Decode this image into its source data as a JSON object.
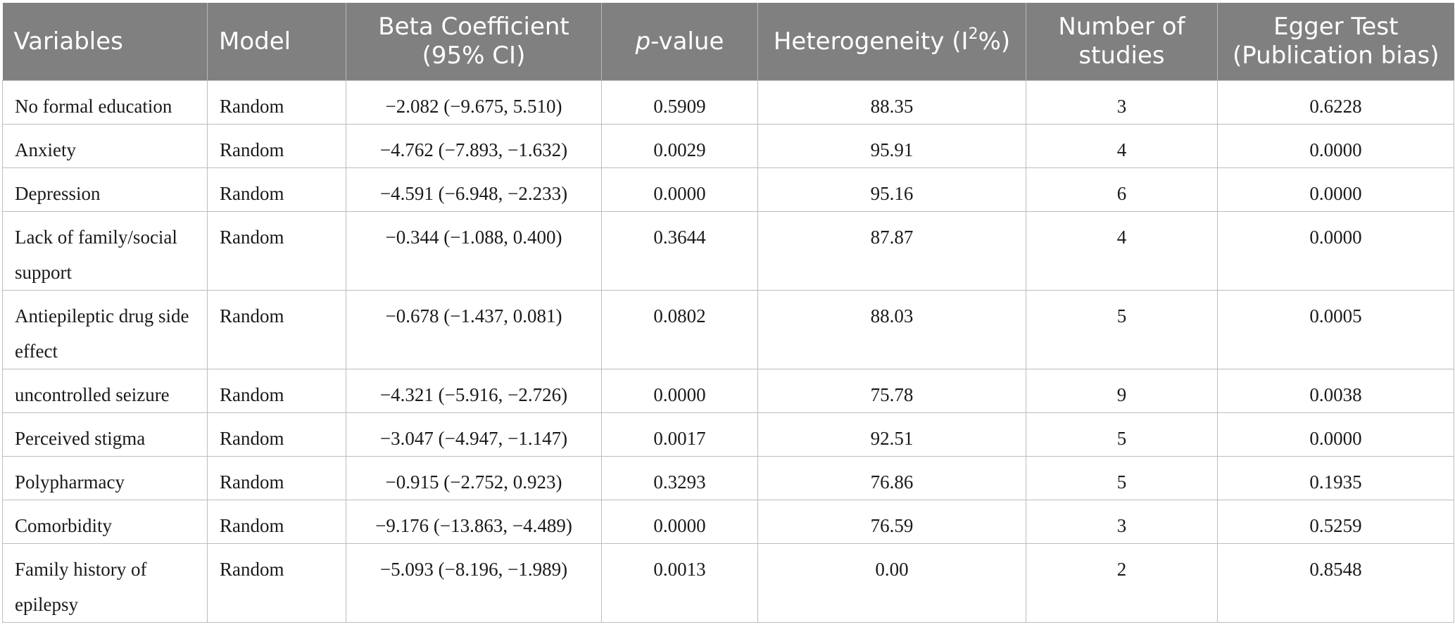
{
  "table": {
    "headers": {
      "variables": "Variables",
      "model": "Model",
      "beta_line1": "Beta Coefficient",
      "beta_line2": "(95% CI)",
      "pvalue_prefix": "p",
      "pvalue_suffix": "-value",
      "hetero_prefix": "Heterogeneity (I",
      "hetero_sup": "2",
      "hetero_suffix": "%)",
      "studies_line1": "Number of",
      "studies_line2": "studies",
      "egger_line1": "Egger Test",
      "egger_line2": "(Publication bias)"
    },
    "rows": [
      {
        "variable": "No formal education",
        "model": "Random",
        "beta": "−2.082 (−9.675, 5.510)",
        "p": "0.5909",
        "het": "88.35",
        "n": "3",
        "egger": "0.6228"
      },
      {
        "variable": "Anxiety",
        "model": "Random",
        "beta": "−4.762 (−7.893, −1.632)",
        "p": "0.0029",
        "het": "95.91",
        "n": "4",
        "egger": "0.0000"
      },
      {
        "variable": "Depression",
        "model": "Random",
        "beta": "−4.591 (−6.948, −2.233)",
        "p": "0.0000",
        "het": "95.16",
        "n": "6",
        "egger": "0.0000"
      },
      {
        "variable": "Lack of family/social support",
        "model": "Random",
        "beta": "−0.344 (−1.088, 0.400)",
        "p": "0.3644",
        "het": "87.87",
        "n": "4",
        "egger": "0.0000"
      },
      {
        "variable": "Antiepileptic drug side effect",
        "model": "Random",
        "beta": "−0.678 (−1.437, 0.081)",
        "p": "0.0802",
        "het": "88.03",
        "n": "5",
        "egger": "0.0005"
      },
      {
        "variable": "uncontrolled seizure",
        "model": "Random",
        "beta": "−4.321 (−5.916, −2.726)",
        "p": "0.0000",
        "het": "75.78",
        "n": "9",
        "egger": "0.0038"
      },
      {
        "variable": "Perceived stigma",
        "model": "Random",
        "beta": "−3.047 (−4.947, −1.147)",
        "p": "0.0017",
        "het": "92.51",
        "n": "5",
        "egger": "0.0000"
      },
      {
        "variable": "Polypharmacy",
        "model": "Random",
        "beta": "−0.915 (−2.752, 0.923)",
        "p": "0.3293",
        "het": "76.86",
        "n": "5",
        "egger": "0.1935"
      },
      {
        "variable": "Comorbidity",
        "model": "Random",
        "beta": "−9.176 (−13.863, −4.489)",
        "p": "0.0000",
        "het": "76.59",
        "n": "3",
        "egger": "0.5259"
      },
      {
        "variable": "Family history of epilepsy",
        "model": "Random",
        "beta": "−5.093 (−8.196, −1.989)",
        "p": "0.0013",
        "het": "0.00",
        "n": "2",
        "egger": "0.8548"
      }
    ]
  }
}
